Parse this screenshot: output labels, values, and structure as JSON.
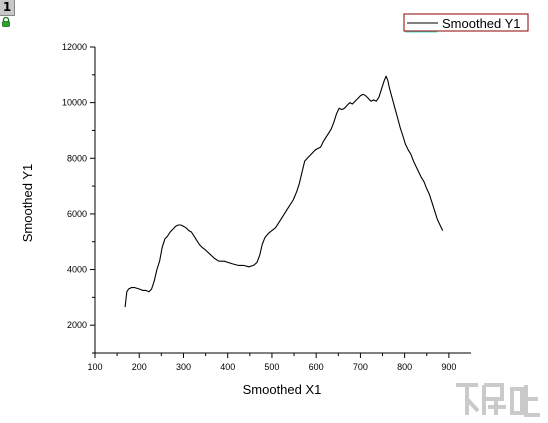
{
  "layer_badge": "1",
  "icons": {
    "lock": "lock-icon",
    "watermark": "logo-watermark"
  },
  "colors": {
    "line": "#000000",
    "legend_border": "#8b0000",
    "legend_underline": "#40e0d0",
    "axis": "#000000"
  },
  "chart_data": {
    "type": "line",
    "xlabel": "Smoothed X1",
    "ylabel": "Smoothed Y1",
    "xlim": [
      100,
      950
    ],
    "ylim": [
      1000,
      12000
    ],
    "xticks": [
      "100",
      "200",
      "300",
      "400",
      "500",
      "600",
      "700",
      "800",
      "900"
    ],
    "yticks": [
      "2000",
      "4000",
      "6000",
      "8000",
      "10000",
      "12000"
    ],
    "legend_position": "top-right",
    "series": [
      {
        "name": "Smoothed Y1",
        "x": [
          168,
          172,
          176,
          182,
          190,
          200,
          208,
          215,
          222,
          228,
          234,
          240,
          246,
          252,
          258,
          264,
          270,
          276,
          282,
          288,
          294,
          300,
          306,
          312,
          318,
          324,
          330,
          336,
          342,
          350,
          360,
          370,
          380,
          392,
          402,
          412,
          424,
          436,
          448,
          458,
          466,
          472,
          478,
          484,
          492,
          500,
          508,
          516,
          524,
          532,
          540,
          548,
          556,
          562,
          568,
          574,
          580,
          586,
          592,
          598,
          604,
          610,
          616,
          622,
          628,
          634,
          640,
          646,
          652,
          658,
          664,
          670,
          676,
          682,
          688,
          694,
          700,
          706,
          712,
          718,
          724,
          730,
          736,
          742,
          748,
          754,
          758,
          762,
          766,
          772,
          778,
          784,
          790,
          796,
          802,
          808,
          814,
          820,
          826,
          832,
          838,
          844,
          850,
          856,
          862,
          868,
          874,
          880,
          886
        ],
        "y": [
          2650,
          3200,
          3300,
          3350,
          3350,
          3300,
          3250,
          3250,
          3200,
          3300,
          3600,
          4000,
          4300,
          4800,
          5100,
          5200,
          5350,
          5450,
          5550,
          5600,
          5600,
          5550,
          5500,
          5400,
          5350,
          5200,
          5050,
          4900,
          4800,
          4700,
          4550,
          4400,
          4300,
          4300,
          4250,
          4200,
          4150,
          4150,
          4100,
          4150,
          4250,
          4500,
          4900,
          5150,
          5300,
          5400,
          5500,
          5700,
          5900,
          6100,
          6300,
          6500,
          6800,
          7100,
          7500,
          7900,
          8000,
          8100,
          8200,
          8300,
          8350,
          8400,
          8600,
          8750,
          8900,
          9050,
          9300,
          9600,
          9800,
          9750,
          9800,
          9900,
          10000,
          9950,
          10050,
          10150,
          10250,
          10300,
          10250,
          10150,
          10050,
          10100,
          10050,
          10200,
          10500,
          10800,
          10950,
          10800,
          10500,
          10150,
          9800,
          9450,
          9100,
          8800,
          8500,
          8300,
          8150,
          7900,
          7700,
          7500,
          7300,
          7150,
          6900,
          6700,
          6400,
          6100,
          5800,
          5600,
          5400
        ]
      }
    ]
  }
}
